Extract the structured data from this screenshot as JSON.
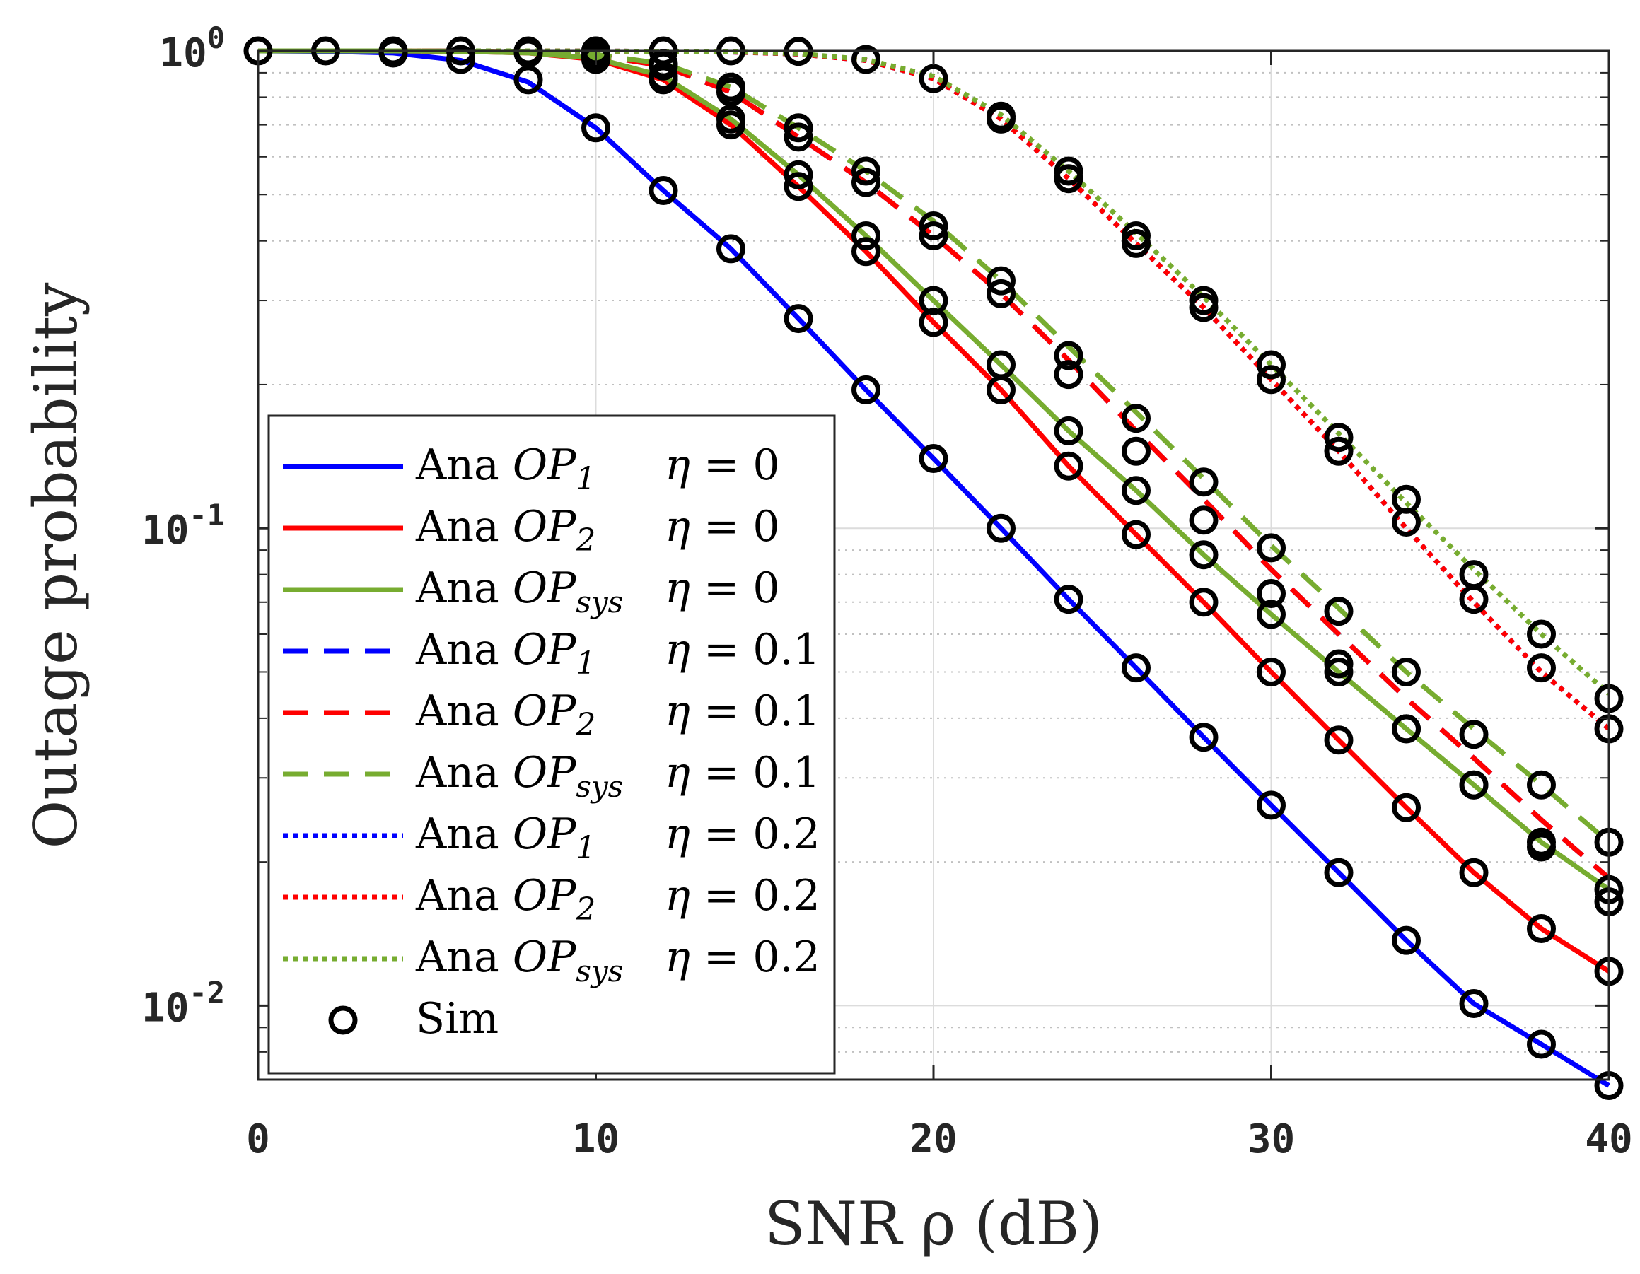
{
  "chart_data": {
    "type": "line",
    "xlabel": "SNR ρ (dB)",
    "ylabel": "Outage probability",
    "xlim": [
      0,
      40
    ],
    "ylim": [
      0.007,
      1.0
    ],
    "yscale": "log",
    "grid": true,
    "legend_position": "lower-left",
    "x_ticks": [
      0,
      10,
      20,
      30,
      40
    ],
    "y_ticks": [
      {
        "value": 1,
        "base": "10",
        "exp": "0"
      },
      {
        "value": 0.1,
        "base": "10",
        "exp": "-1"
      },
      {
        "value": 0.01,
        "base": "10",
        "exp": "-2"
      }
    ],
    "x": [
      0,
      2,
      4,
      6,
      8,
      10,
      12,
      14,
      16,
      18,
      20,
      22,
      24,
      26,
      28,
      30,
      32,
      34,
      36,
      38,
      40
    ],
    "series": [
      {
        "name": "Ana OP1 η = 0",
        "label": {
          "ana": "Ana",
          "op": "OP",
          "sub": "1",
          "eta": "η = 0"
        },
        "color": "#0000ff",
        "dash": "solid",
        "values": [
          1.0,
          0.998,
          0.99,
          0.955,
          0.86,
          0.69,
          0.51,
          0.385,
          0.275,
          0.195,
          0.14,
          0.1,
          0.071,
          0.051,
          0.0365,
          0.0263,
          0.019,
          0.0137,
          0.0101,
          0.0083,
          0.0068
        ]
      },
      {
        "name": "Ana OP2 η = 0",
        "label": {
          "ana": "Ana",
          "op": "OP",
          "sub": "2",
          "eta": "η = 0"
        },
        "color": "#ff0000",
        "dash": "solid",
        "values": [
          1.0,
          1.0,
          1.0,
          0.998,
          0.99,
          0.96,
          0.87,
          0.7,
          0.52,
          0.38,
          0.27,
          0.195,
          0.135,
          0.097,
          0.07,
          0.05,
          0.036,
          0.026,
          0.019,
          0.0145,
          0.0118
        ]
      },
      {
        "name": "Ana OPsys η = 0",
        "label": {
          "ana": "Ana",
          "op": "OP",
          "sub": "sys",
          "eta": "η = 0"
        },
        "color": "#77ac30",
        "dash": "solid",
        "values": [
          1.0,
          1.0,
          1.0,
          0.998,
          0.99,
          0.965,
          0.885,
          0.72,
          0.55,
          0.41,
          0.3,
          0.22,
          0.16,
          0.12,
          0.088,
          0.066,
          0.05,
          0.038,
          0.029,
          0.022,
          0.0175
        ]
      },
      {
        "name": "Ana OP1 η = 0.1",
        "label": {
          "ana": "Ana",
          "op": "OP",
          "sub": "1",
          "eta": "η = 0.1"
        },
        "color": "#0000ff",
        "dash": "dashed",
        "values": [
          1.0,
          1.0,
          1.0,
          0.999,
          0.995,
          0.98,
          0.93,
          0.82,
          0.66,
          0.53,
          0.41,
          0.31,
          0.225,
          0.16,
          0.115,
          0.082,
          0.06,
          0.044,
          0.033,
          0.0245,
          0.0185
        ]
      },
      {
        "name": "Ana OP2 η = 0.1",
        "label": {
          "ana": "Ana",
          "op": "OP",
          "sub": "2",
          "eta": "η = 0.1"
        },
        "color": "#ff0000",
        "dash": "dashed",
        "values": [
          1.0,
          1.0,
          1.0,
          0.999,
          0.995,
          0.98,
          0.93,
          0.82,
          0.66,
          0.53,
          0.41,
          0.31,
          0.225,
          0.16,
          0.115,
          0.082,
          0.06,
          0.044,
          0.033,
          0.0245,
          0.0185
        ]
      },
      {
        "name": "Ana OPsys η = 0.1",
        "label": {
          "ana": "Ana",
          "op": "OP",
          "sub": "sys",
          "eta": "η = 0.1"
        },
        "color": "#77ac30",
        "dash": "dashed",
        "values": [
          1.0,
          1.0,
          1.0,
          0.999,
          0.996,
          0.983,
          0.94,
          0.84,
          0.69,
          0.56,
          0.44,
          0.33,
          0.24,
          0.175,
          0.127,
          0.092,
          0.068,
          0.05,
          0.038,
          0.029,
          0.022
        ]
      },
      {
        "name": "Ana OP1 η = 0.2",
        "label": {
          "ana": "Ana",
          "op": "OP",
          "sub": "1",
          "eta": "η = 0.2"
        },
        "color": "#0000ff",
        "dash": "dotted",
        "values": [
          1.0,
          1.0,
          1.0,
          1.0,
          1.0,
          0.999,
          0.998,
          0.995,
          0.985,
          0.955,
          0.875,
          0.72,
          0.54,
          0.395,
          0.29,
          0.205,
          0.145,
          0.1,
          0.07,
          0.05,
          0.038
        ]
      },
      {
        "name": "Ana OP2 η = 0.2",
        "label": {
          "ana": "Ana",
          "op": "OP",
          "sub": "2",
          "eta": "η = 0.2"
        },
        "color": "#ff0000",
        "dash": "dotted",
        "values": [
          1.0,
          1.0,
          1.0,
          1.0,
          1.0,
          0.999,
          0.998,
          0.995,
          0.985,
          0.955,
          0.875,
          0.72,
          0.54,
          0.395,
          0.29,
          0.205,
          0.145,
          0.1,
          0.07,
          0.05,
          0.038
        ]
      },
      {
        "name": "Ana OPsys η = 0.2",
        "label": {
          "ana": "Ana",
          "op": "OP",
          "sub": "sys",
          "eta": "η = 0.2"
        },
        "color": "#77ac30",
        "dash": "dotted",
        "values": [
          1.0,
          1.0,
          1.0,
          1.0,
          1.0,
          0.999,
          0.998,
          0.996,
          0.987,
          0.96,
          0.885,
          0.735,
          0.56,
          0.415,
          0.305,
          0.22,
          0.158,
          0.113,
          0.082,
          0.06,
          0.045
        ]
      }
    ],
    "sim": {
      "name": "Sim",
      "color": "#000000",
      "marker": "circle",
      "points": [
        [
          0,
          1.0
        ],
        [
          2,
          1.0
        ],
        [
          4,
          0.99
        ],
        [
          6,
          0.96
        ],
        [
          8,
          0.87
        ],
        [
          10,
          0.69
        ],
        [
          12,
          0.51
        ],
        [
          14,
          0.385
        ],
        [
          16,
          0.275
        ],
        [
          18,
          0.195
        ],
        [
          20,
          0.14
        ],
        [
          22,
          0.1
        ],
        [
          24,
          0.071
        ],
        [
          26,
          0.051
        ],
        [
          28,
          0.0365
        ],
        [
          30,
          0.0263
        ],
        [
          32,
          0.019
        ],
        [
          34,
          0.0137
        ],
        [
          36,
          0.0101
        ],
        [
          38,
          0.0083
        ],
        [
          40,
          0.0068
        ],
        [
          4,
          1.0
        ],
        [
          6,
          1.0
        ],
        [
          8,
          0.99
        ],
        [
          10,
          0.96
        ],
        [
          12,
          0.87
        ],
        [
          14,
          0.7
        ],
        [
          16,
          0.52
        ],
        [
          18,
          0.38
        ],
        [
          20,
          0.27
        ],
        [
          22,
          0.195
        ],
        [
          24,
          0.135
        ],
        [
          26,
          0.097
        ],
        [
          28,
          0.07
        ],
        [
          30,
          0.05
        ],
        [
          32,
          0.036
        ],
        [
          34,
          0.026
        ],
        [
          36,
          0.019
        ],
        [
          38,
          0.0145
        ],
        [
          40,
          0.0118
        ],
        [
          8,
          1.0
        ],
        [
          10,
          0.97
        ],
        [
          12,
          0.885
        ],
        [
          14,
          0.72
        ],
        [
          16,
          0.55
        ],
        [
          18,
          0.41
        ],
        [
          20,
          0.3
        ],
        [
          22,
          0.22
        ],
        [
          24,
          0.16
        ],
        [
          26,
          0.12
        ],
        [
          28,
          0.088
        ],
        [
          30,
          0.066
        ],
        [
          32,
          0.05
        ],
        [
          34,
          0.038
        ],
        [
          36,
          0.029
        ],
        [
          38,
          0.022
        ],
        [
          40,
          0.0175
        ],
        [
          10,
          0.98
        ],
        [
          12,
          0.93
        ],
        [
          14,
          0.82
        ],
        [
          16,
          0.66
        ],
        [
          18,
          0.53
        ],
        [
          20,
          0.41
        ],
        [
          22,
          0.31
        ],
        [
          24,
          0.21
        ],
        [
          26,
          0.145
        ],
        [
          28,
          0.104
        ],
        [
          30,
          0.073
        ],
        [
          32,
          0.052
        ],
        [
          34,
          0.038
        ],
        [
          36,
          0.029
        ],
        [
          38,
          0.0215
        ],
        [
          40,
          0.0165
        ],
        [
          10,
          1.0
        ],
        [
          12,
          0.94
        ],
        [
          14,
          0.84
        ],
        [
          16,
          0.69
        ],
        [
          18,
          0.56
        ],
        [
          20,
          0.43
        ],
        [
          22,
          0.33
        ],
        [
          24,
          0.23
        ],
        [
          26,
          0.17
        ],
        [
          28,
          0.125
        ],
        [
          30,
          0.091
        ],
        [
          32,
          0.067
        ],
        [
          34,
          0.05
        ],
        [
          36,
          0.037
        ],
        [
          38,
          0.029
        ],
        [
          40,
          0.022
        ],
        [
          10,
          1.0
        ],
        [
          12,
          1.0
        ],
        [
          14,
          1.0
        ],
        [
          16,
          0.998
        ],
        [
          18,
          0.96
        ],
        [
          20,
          0.875
        ],
        [
          22,
          0.72
        ],
        [
          24,
          0.54
        ],
        [
          26,
          0.395
        ],
        [
          28,
          0.29
        ],
        [
          30,
          0.205
        ],
        [
          32,
          0.145
        ],
        [
          34,
          0.103
        ],
        [
          36,
          0.071
        ],
        [
          38,
          0.051
        ],
        [
          40,
          0.038
        ],
        [
          22,
          0.73
        ],
        [
          24,
          0.56
        ],
        [
          26,
          0.41
        ],
        [
          28,
          0.3
        ],
        [
          30,
          0.22
        ],
        [
          32,
          0.155
        ],
        [
          34,
          0.115
        ],
        [
          36,
          0.08
        ],
        [
          38,
          0.06
        ],
        [
          40,
          0.044
        ]
      ]
    }
  }
}
